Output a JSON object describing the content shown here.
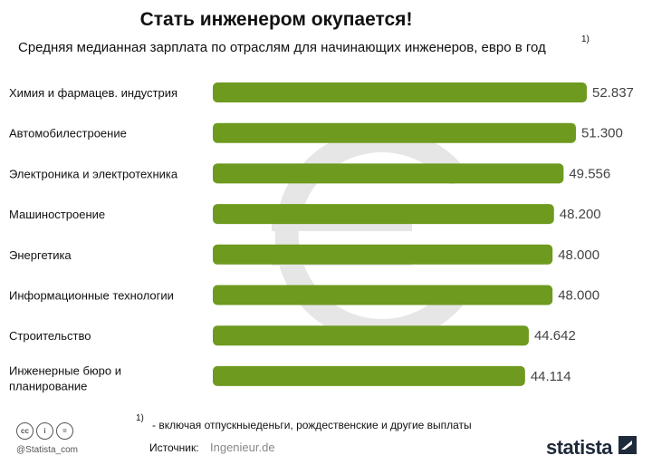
{
  "title": "Стать инженером окупается!",
  "subtitle": "Средняя медианная зарплата по отраслям для начинающих инженеров, евро в год",
  "footnote_mark": "1)",
  "colors": {
    "bar": "#6e9a1f",
    "watermark": "#e6e6e6"
  },
  "watermark_icon": "euro-sign-icon",
  "chart_data": {
    "type": "bar",
    "orientation": "horizontal",
    "title": "Стать инженером окупается!",
    "subtitle": "Средняя медианная зарплата по отраслям для начинающих инженеров, евро в год",
    "categories": [
      [
        "Химия и фармацев. индустрия"
      ],
      [
        "Автомобилестроение"
      ],
      [
        "Электроника и электротехника"
      ],
      [
        "Машиностроение"
      ],
      [
        "Энергетика"
      ],
      [
        "Информационные технологии"
      ],
      [
        "Строительство"
      ],
      [
        "Инженерные бюро и",
        "планирование"
      ]
    ],
    "values": [
      52837,
      51300,
      49556,
      48200,
      48000,
      48000,
      44642,
      44114
    ],
    "value_labels": [
      "52.837",
      "51.300",
      "49.556",
      "48.200",
      "48.000",
      "48.000",
      "44.642",
      "44.114"
    ],
    "xlim": [
      0,
      52837
    ],
    "grid": false,
    "legend": "none"
  },
  "footer": {
    "footnote_mark": "1)",
    "footnote_text": "- включая отпускныеденьги, рождественские и другие выплаты",
    "source_label": "Источник:",
    "source_value": "Ingenieur.de",
    "credit": "@Statista_com",
    "brand": "statista",
    "license_icons": [
      "cc",
      "i",
      "="
    ]
  }
}
